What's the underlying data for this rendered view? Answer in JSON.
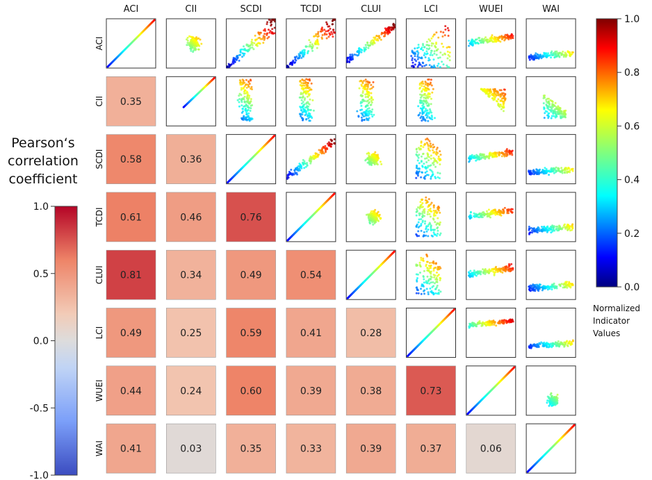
{
  "chart_data": {
    "type": "heatmap",
    "variables": [
      "ACI",
      "CII",
      "SCDI",
      "TCDI",
      "CLUI",
      "LCI",
      "WUEI",
      "WAI"
    ],
    "lower_triangle": "pearson_correlation",
    "diagonal": "identity_line",
    "upper_triangle": "scatter_plot",
    "correlations": [
      {
        "row": "CII",
        "col": "ACI",
        "value": 0.35,
        "label": "0.35"
      },
      {
        "row": "SCDI",
        "col": "ACI",
        "value": 0.58,
        "label": "0.58"
      },
      {
        "row": "SCDI",
        "col": "CII",
        "value": 0.36,
        "label": "0.36"
      },
      {
        "row": "TCDI",
        "col": "ACI",
        "value": 0.61,
        "label": "0.61"
      },
      {
        "row": "TCDI",
        "col": "CII",
        "value": 0.46,
        "label": "0.46"
      },
      {
        "row": "TCDI",
        "col": "SCDI",
        "value": 0.76,
        "label": "0.76"
      },
      {
        "row": "CLUI",
        "col": "ACI",
        "value": 0.81,
        "label": "0.81"
      },
      {
        "row": "CLUI",
        "col": "CII",
        "value": 0.34,
        "label": "0.34"
      },
      {
        "row": "CLUI",
        "col": "SCDI",
        "value": 0.49,
        "label": "0.49"
      },
      {
        "row": "CLUI",
        "col": "TCDI",
        "value": 0.54,
        "label": "0.54"
      },
      {
        "row": "LCI",
        "col": "ACI",
        "value": 0.49,
        "label": "0.49"
      },
      {
        "row": "LCI",
        "col": "CII",
        "value": 0.25,
        "label": "0.25"
      },
      {
        "row": "LCI",
        "col": "SCDI",
        "value": 0.59,
        "label": "0.59"
      },
      {
        "row": "LCI",
        "col": "TCDI",
        "value": 0.41,
        "label": "0.41"
      },
      {
        "row": "LCI",
        "col": "CLUI",
        "value": 0.28,
        "label": "0.28"
      },
      {
        "row": "WUEI",
        "col": "ACI",
        "value": 0.44,
        "label": "0.44"
      },
      {
        "row": "WUEI",
        "col": "CII",
        "value": 0.24,
        "label": "0.24"
      },
      {
        "row": "WUEI",
        "col": "SCDI",
        "value": 0.6,
        "label": "0.60"
      },
      {
        "row": "WUEI",
        "col": "TCDI",
        "value": 0.39,
        "label": "0.39"
      },
      {
        "row": "WUEI",
        "col": "CLUI",
        "value": 0.38,
        "label": "0.38"
      },
      {
        "row": "WUEI",
        "col": "LCI",
        "value": 0.73,
        "label": "0.73"
      },
      {
        "row": "WAI",
        "col": "ACI",
        "value": 0.41,
        "label": "0.41"
      },
      {
        "row": "WAI",
        "col": "CII",
        "value": 0.03,
        "label": "0.03"
      },
      {
        "row": "WAI",
        "col": "SCDI",
        "value": 0.35,
        "label": "0.35"
      },
      {
        "row": "WAI",
        "col": "TCDI",
        "value": 0.33,
        "label": "0.33"
      },
      {
        "row": "WAI",
        "col": "CLUI",
        "value": 0.39,
        "label": "0.39"
      },
      {
        "row": "WAI",
        "col": "LCI",
        "value": 0.37,
        "label": "0.37"
      },
      {
        "row": "WAI",
        "col": "WUEI",
        "value": 0.06,
        "label": "0.06"
      }
    ],
    "correlation_colorbar": {
      "title_lines": [
        "Pearson‘s",
        "correlation",
        "coefficient"
      ],
      "range": [
        -1.0,
        1.0
      ],
      "ticks": [
        {
          "value": 1.0,
          "label": "1.0"
        },
        {
          "value": 0.5,
          "label": "0.5"
        },
        {
          "value": 0.0,
          "label": "0.0"
        },
        {
          "value": -0.5,
          "label": "-0.5"
        },
        {
          "value": -1.0,
          "label": "-1.0"
        }
      ],
      "colormap": "coolwarm",
      "colors": {
        "low": "#3b4cc0",
        "mid": "#dddcdc",
        "high": "#b40426"
      }
    },
    "value_colorbar": {
      "title_lines": [
        "Normalized",
        "Indicator",
        "Values"
      ],
      "range": [
        0.0,
        1.0
      ],
      "ticks": [
        {
          "value": 1.0,
          "label": "1.0"
        },
        {
          "value": 0.8,
          "label": "0.8"
        },
        {
          "value": 0.6,
          "label": "0.6"
        },
        {
          "value": 0.4,
          "label": "0.4"
        },
        {
          "value": 0.2,
          "label": "0.2"
        },
        {
          "value": 0.0,
          "label": "0.0"
        }
      ],
      "colormap": "jet"
    },
    "scatter_shapes": {
      "CII|ACI": "band_high",
      "ACI|SCDI": "wedge_up",
      "ACI|TCDI": "wedge_up",
      "ACI|CLUI": "diag_cloud",
      "ACI|LCI": "fan",
      "ACI|WUEI": "band_mid",
      "ACI|WAI": "band_low",
      "CII|SCDI": "spike_left",
      "CII|TCDI": "spike_left",
      "CII|CLUI": "spike_left",
      "CII|LCI": "spike_left",
      "CII|WUEI": "triangle_top",
      "CII|WAI": "corner_low",
      "SCDI|TCDI": "diag_cloud",
      "SCDI|CLUI": "blob_center",
      "SCDI|LCI": "arch",
      "SCDI|WUEI": "band_mid",
      "SCDI|WAI": "band_low",
      "TCDI|CLUI": "blob_center",
      "TCDI|LCI": "arch",
      "TCDI|WUEI": "band_mid",
      "TCDI|WAI": "band_low",
      "CLUI|LCI": "arch",
      "CLUI|WUEI": "band_mid",
      "CLUI|WAI": "band_low",
      "LCI|WUEI": "band_high",
      "LCI|WAI": "band_low",
      "WUEI|WAI": "blob_low"
    }
  }
}
